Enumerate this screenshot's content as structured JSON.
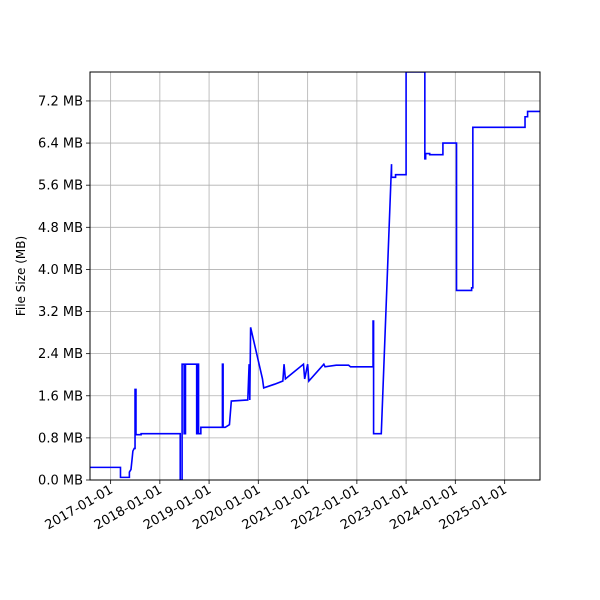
{
  "chart_data": {
    "type": "line",
    "ylabel": "File Size (MB)",
    "xlim": [
      "2016-08-01",
      "2025-09-20"
    ],
    "ylim": [
      0,
      7.75
    ],
    "grid": true,
    "line_color": "#0000ff",
    "xticks": [
      "2017-01-01",
      "2018-01-01",
      "2019-01-01",
      "2020-01-01",
      "2021-01-01",
      "2022-01-01",
      "2023-01-01",
      "2024-01-01",
      "2025-01-01"
    ],
    "yticks": [
      0.0,
      0.8,
      1.6,
      2.4,
      3.2,
      4.0,
      4.8,
      5.6,
      6.4,
      7.2
    ],
    "ytick_labels": [
      "0.0 MB",
      "0.8 MB",
      "1.6 MB",
      "2.4 MB",
      "3.2 MB",
      "4.0 MB",
      "4.8 MB",
      "5.6 MB",
      "6.4 MB",
      "7.2 MB"
    ],
    "series": [
      {
        "x": [
          "2016-08-01",
          "2017-03-15",
          "2017-03-15",
          "2017-05-20",
          "2017-05-20",
          "2017-06-01",
          "2017-06-10",
          "2017-06-15",
          "2017-06-25",
          "2017-07-01",
          "2017-07-01",
          "2017-07-08",
          "2017-07-08",
          "2017-08-15",
          "2017-08-15",
          "2018-01-01",
          "2018-04-01",
          "2018-06-01",
          "2018-06-01",
          "2018-06-15",
          "2018-06-15",
          "2018-06-30",
          "2018-06-30",
          "2018-07-10",
          "2018-07-10",
          "2018-10-01",
          "2018-10-01",
          "2018-10-10",
          "2018-10-10",
          "2018-10-15",
          "2018-10-15",
          "2018-11-01",
          "2018-11-01",
          "2019-04-10",
          "2019-04-10",
          "2019-04-15",
          "2019-04-15",
          "2019-05-01",
          "2019-06-01",
          "2019-06-15",
          "2019-10-15",
          "2019-10-15",
          "2019-10-25",
          "2019-10-25",
          "2019-10-30",
          "2019-10-30",
          "2019-11-05",
          "2019-11-05",
          "2020-02-01",
          "2020-02-01",
          "2020-02-10",
          "2020-02-10",
          "2020-05-01",
          "2020-05-01",
          "2020-07-01",
          "2020-07-01",
          "2020-07-10",
          "2020-07-10",
          "2020-07-20",
          "2020-07-20",
          "2020-12-01",
          "2020-12-01",
          "2020-12-10",
          "2020-12-10",
          "2021-01-01",
          "2021-01-01",
          "2021-01-10",
          "2021-01-10",
          "2021-05-01",
          "2021-05-01",
          "2021-05-10",
          "2021-05-10",
          "2021-08-01",
          "2021-08-01",
          "2021-11-01",
          "2021-11-15",
          "2022-05-01",
          "2022-05-01",
          "2022-05-05",
          "2022-05-05",
          "2022-07-01",
          "2022-09-15",
          "2022-09-15",
          "2022-10-01",
          "2022-10-01",
          "2022-10-15",
          "2022-10-15",
          "2023-01-01",
          "2023-01-01",
          "2023-05-20",
          "2023-05-20",
          "2023-05-26",
          "2023-05-26",
          "2023-06-20",
          "2023-06-20",
          "2023-06-25",
          "2023-06-25",
          "2023-10-01",
          "2023-10-01",
          "2024-01-01",
          "2024-01-01",
          "2024-01-10",
          "2024-01-10",
          "2024-05-01",
          "2024-05-01",
          "2024-05-10",
          "2024-05-10",
          "2024-06-20",
          "2024-06-20",
          "2025-06-01",
          "2025-06-01",
          "2025-06-20",
          "2025-06-20",
          "2025-07-01",
          "2025-07-01",
          "2025-09-20"
        ],
        "y": [
          0.24,
          0.24,
          0.05,
          0.05,
          0.15,
          0.2,
          0.42,
          0.55,
          0.6,
          0.6,
          1.72,
          1.72,
          0.86,
          0.86,
          0.88,
          0.88,
          0.88,
          0.88,
          0.0,
          0.0,
          2.2,
          2.2,
          0.88,
          0.88,
          2.2,
          2.2,
          0.88,
          0.88,
          2.2,
          2.2,
          0.88,
          0.88,
          1.0,
          1.0,
          2.2,
          2.2,
          1.0,
          1.0,
          1.05,
          1.5,
          1.52,
          1.52,
          2.2,
          2.2,
          1.52,
          1.52,
          2.9,
          2.9,
          1.92,
          1.92,
          1.75,
          1.75,
          1.82,
          1.82,
          1.88,
          1.88,
          2.2,
          2.2,
          1.92,
          1.92,
          2.2,
          2.2,
          1.92,
          1.92,
          2.2,
          2.2,
          1.88,
          1.88,
          2.2,
          2.2,
          2.15,
          2.15,
          2.18,
          2.18,
          2.18,
          2.15,
          2.15,
          3.02,
          3.02,
          0.88,
          0.88,
          6.0,
          5.75,
          5.75,
          5.75,
          5.75,
          5.8,
          5.8,
          7.75,
          7.75,
          6.1,
          6.1,
          6.2,
          6.2,
          6.2,
          6.2,
          6.18,
          6.18,
          6.4,
          6.4,
          6.4,
          6.4,
          3.6,
          3.6,
          3.65,
          3.65,
          6.7,
          6.7,
          6.7,
          6.7,
          6.9,
          6.9,
          7.0,
          7.0,
          7.0,
          7.0
        ]
      }
    ]
  }
}
